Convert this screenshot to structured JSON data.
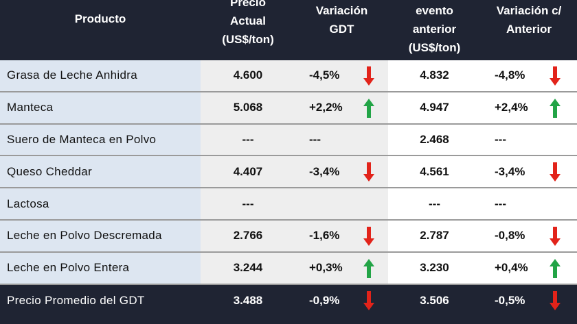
{
  "table": {
    "header": [
      [
        "Producto"
      ],
      [
        "Precio",
        "Actual",
        "(US$/ton)"
      ],
      [
        "Variación",
        "GDT"
      ],
      [
        "evento",
        "anterior",
        "(US$/ton)"
      ],
      [
        "Variación c/",
        "Anterior"
      ]
    ],
    "rows": [
      [
        "Grasa de Leche Anhidra",
        "4.600",
        "-4,5%",
        "4.832",
        "-4,8%"
      ],
      [
        "Manteca",
        "5.068",
        "+2,2%",
        "4.947",
        "+2,4%"
      ],
      [
        "Suero de Manteca en Polvo",
        "---",
        "---",
        "2.468",
        "---"
      ],
      [
        "Queso Cheddar",
        "4.407",
        "-3,4%",
        "4.561",
        "-3,4%"
      ],
      [
        "Lactosa",
        "---",
        "",
        "---",
        "---"
      ],
      [
        "Leche en Polvo Descremada",
        "2.766",
        "-1,6%",
        "2.787",
        "-0,8%"
      ],
      [
        "Leche en Polvo Entera",
        "3.244",
        "+0,3%",
        "3.230",
        "+0,4%"
      ],
      [
        "Precio Promedio del GDT",
        "3.488",
        "-0,9%",
        "3.506",
        "-0,5%"
      ]
    ]
  }
}
